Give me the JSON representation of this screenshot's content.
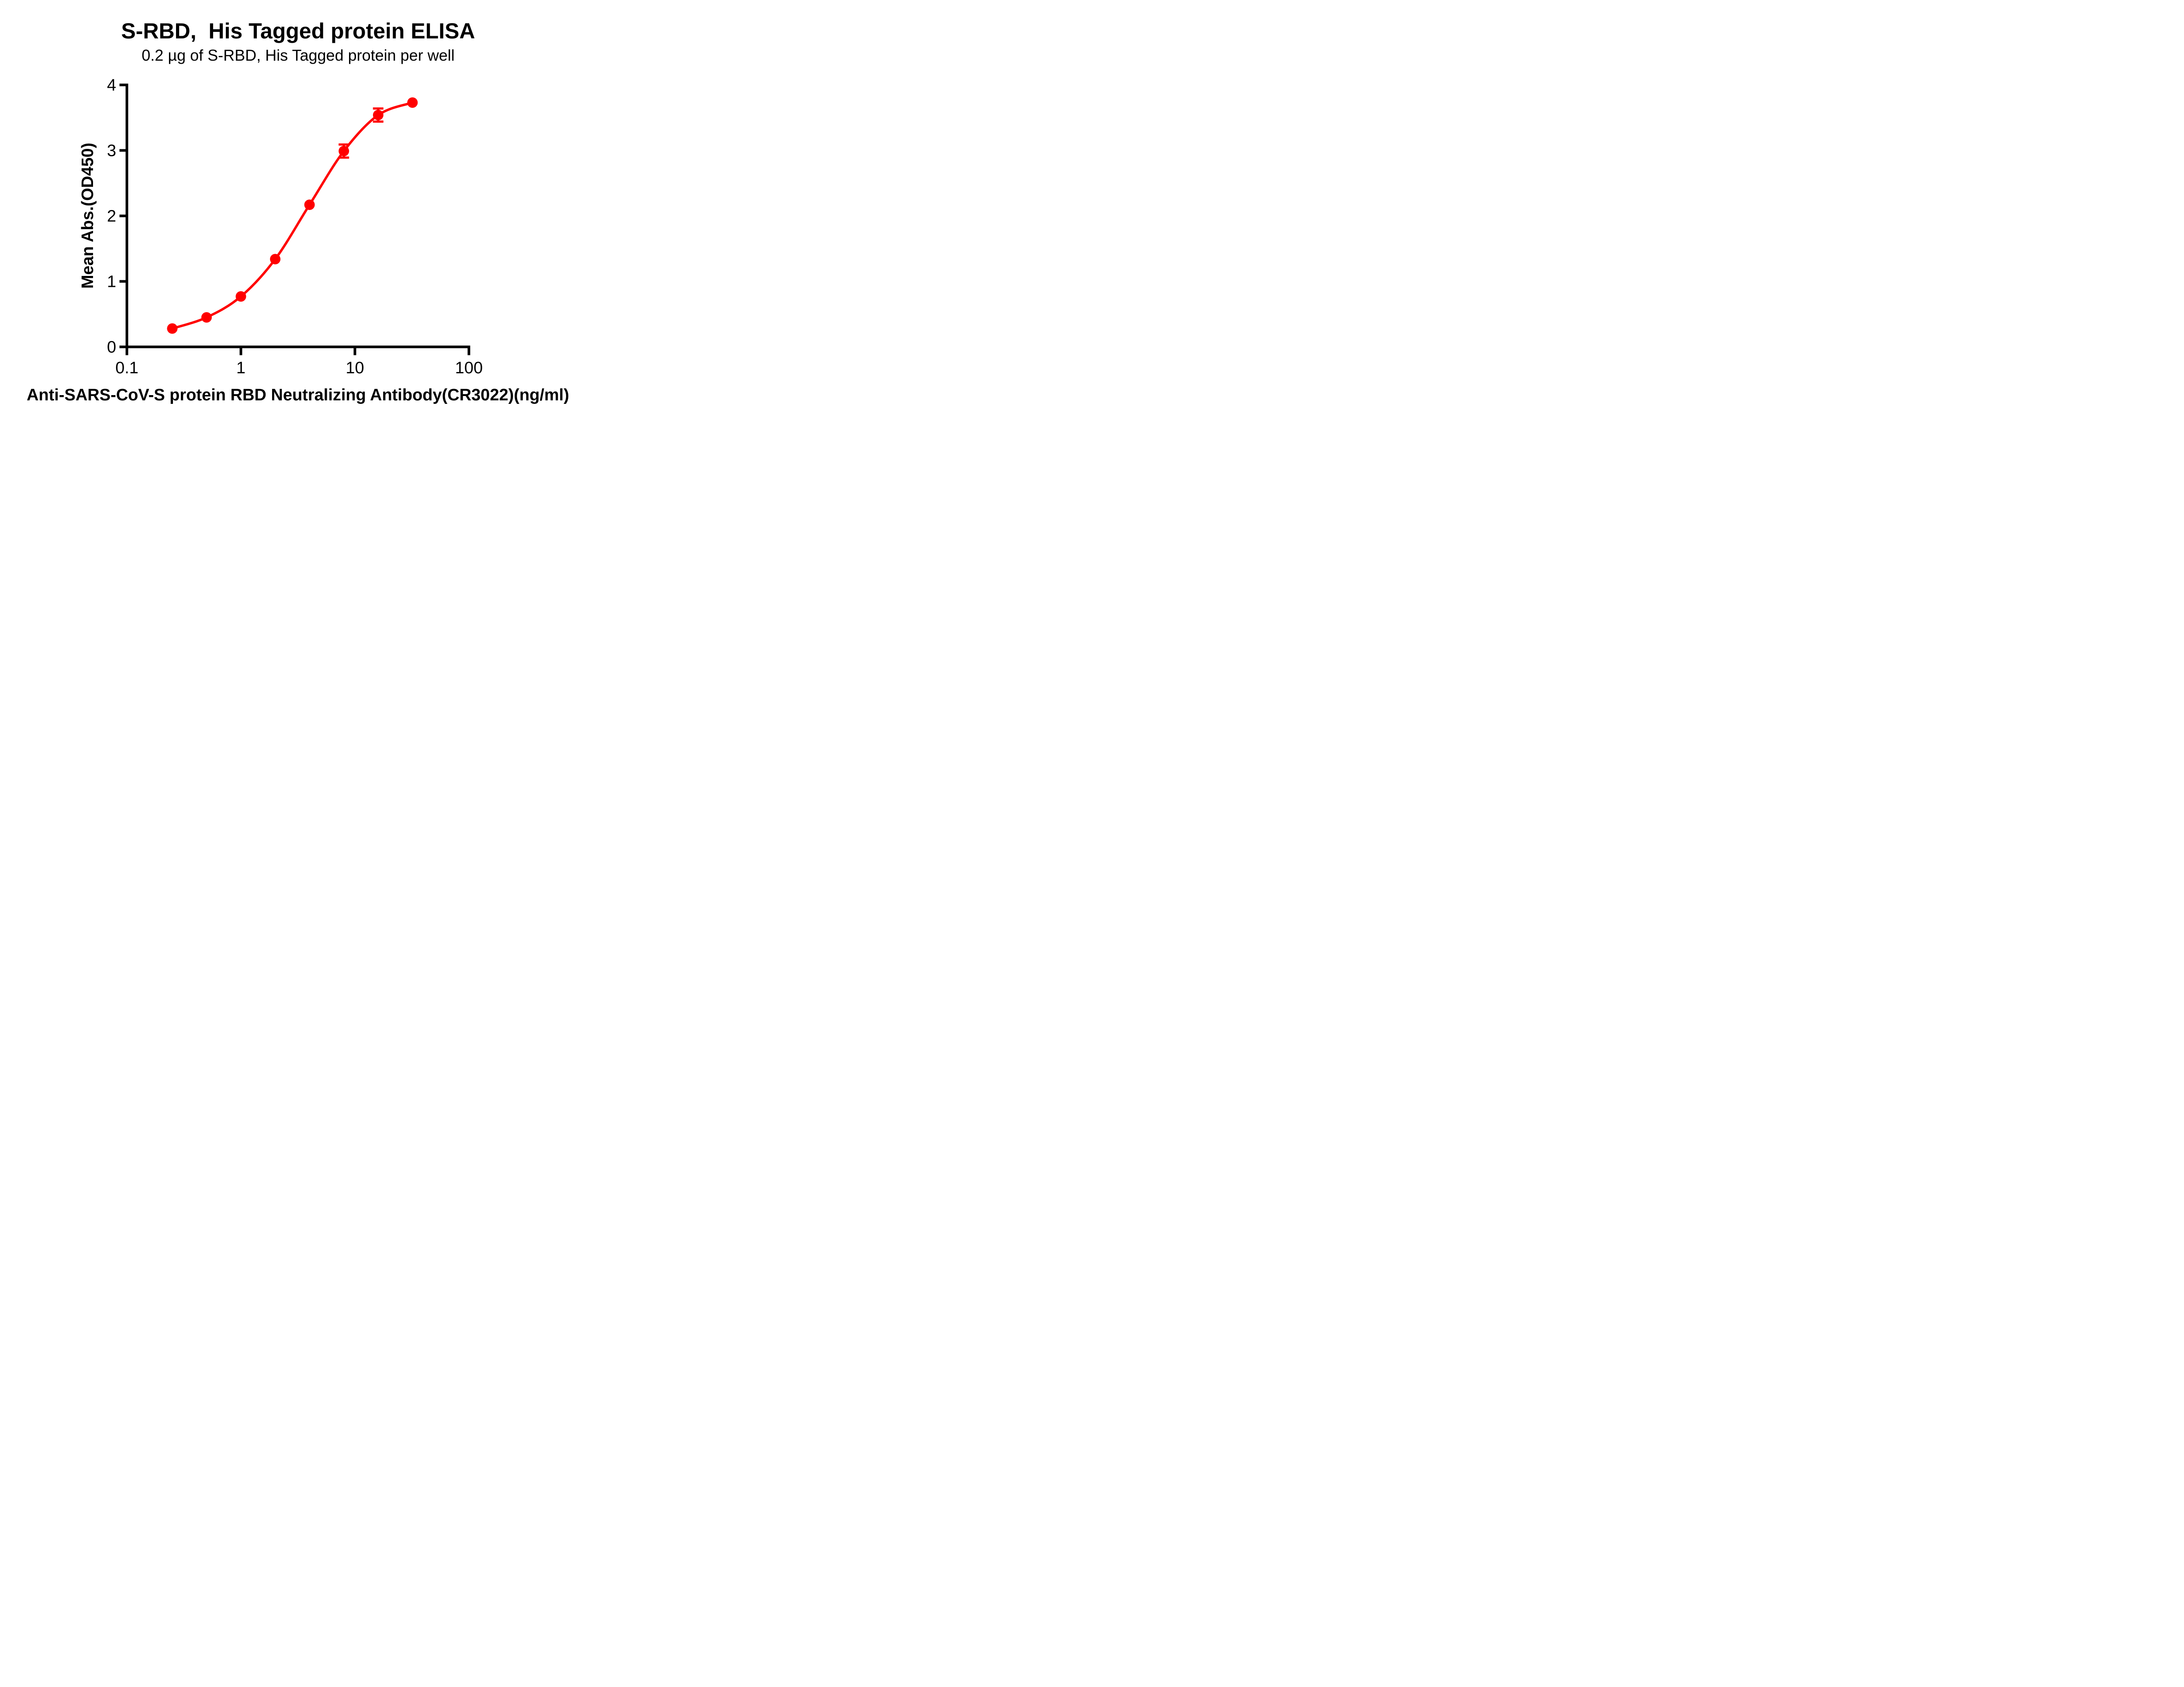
{
  "title": "S-RBD,  His Tagged protein ELISA",
  "subtitle": "0.2 µg of S-RBD, His Tagged protein per well",
  "chart_data": {
    "type": "scatter",
    "title": "S-RBD,  His Tagged protein ELISA",
    "subtitle": "0.2 µg of S-RBD, His Tagged protein per well",
    "xlabel": "Anti-SARS-CoV-S protein RBD Neutralizing Antibody(CR3022)(ng/ml)",
    "ylabel": "Mean Abs.(OD450)",
    "x_scale": "log10",
    "xlim": [
      0.1,
      100
    ],
    "ylim": [
      0,
      4
    ],
    "grid": false,
    "legend_position": "none",
    "x": [
      0.25,
      0.5,
      1,
      2,
      4,
      8,
      16,
      32
    ],
    "y": [
      0.28,
      0.45,
      0.77,
      1.34,
      2.17,
      2.99,
      3.54,
      3.73
    ],
    "y_err": [
      0,
      0,
      0,
      0,
      0,
      0.1,
      0.1,
      0
    ],
    "x_ticks": [
      0.1,
      1,
      10,
      100
    ],
    "x_tick_labels": [
      "0.1",
      "1",
      "10",
      "100"
    ],
    "y_ticks": [
      0,
      1,
      2,
      3,
      4
    ],
    "y_tick_labels": [
      "0",
      "1",
      "2",
      "3",
      "4"
    ],
    "curve_style": "smooth",
    "series_color": "#FF0000",
    "axis_color": "#000000",
    "background_color": "#FFFFFF"
  }
}
